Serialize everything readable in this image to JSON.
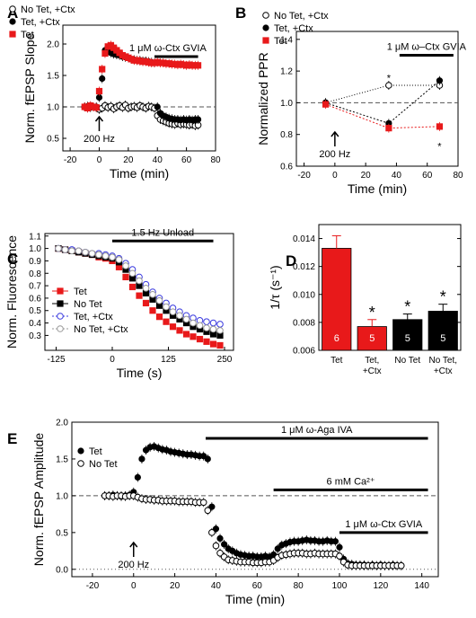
{
  "figure": {
    "panels": [
      "A",
      "B",
      "C",
      "D",
      "E"
    ]
  },
  "chart_data": [
    {
      "panel": "A",
      "type": "scatter",
      "xlabel": "Time (min)",
      "ylabel": "Norm. fEPSP Slope",
      "xlim": [
        -25,
        80
      ],
      "ylim": [
        0.3,
        2.3
      ],
      "xticks": [
        -20,
        0,
        20,
        40,
        60,
        80
      ],
      "yticks": [
        0.5,
        1.0,
        1.5,
        2.0
      ],
      "baseline": 1.0,
      "legend_position": "top-left",
      "annotations": [
        {
          "text": "1 μM ω-Ctx GVIA",
          "bar": [
            38,
            68
          ],
          "level": 1.8
        },
        {
          "text": "200 Hz",
          "x": 0,
          "arrow": true
        }
      ],
      "series": [
        {
          "name": "No Tet, +Ctx",
          "marker": "open-circle",
          "color": "#000000",
          "x": [
            -10,
            -8,
            -6,
            -4,
            -2,
            0,
            2,
            4,
            6,
            8,
            10,
            12,
            14,
            16,
            18,
            20,
            22,
            24,
            26,
            28,
            30,
            32,
            34,
            36,
            38,
            40,
            42,
            44,
            46,
            48,
            50,
            52,
            54,
            56,
            58,
            60,
            62,
            64,
            66,
            68
          ],
          "y": [
            1.0,
            0.99,
            1.01,
            1.0,
            0.99,
            0.96,
            0.98,
            1.02,
            0.99,
            1.01,
            0.97,
            1.0,
            1.02,
            0.99,
            1.03,
            0.98,
            1.0,
            1.01,
            0.99,
            1.02,
            1.0,
            0.98,
            1.01,
            1.0,
            0.98,
            0.86,
            0.8,
            0.78,
            0.76,
            0.74,
            0.73,
            0.72,
            0.74,
            0.72,
            0.73,
            0.72,
            0.71,
            0.72,
            0.7,
            0.71
          ]
        },
        {
          "name": "Tet, +Ctx",
          "marker": "filled-circle",
          "color": "#000000",
          "x": [
            -10,
            -8,
            -6,
            -4,
            -2,
            0,
            2,
            4,
            6,
            8,
            10,
            12,
            14,
            16,
            18,
            20,
            22,
            24,
            26,
            28,
            30,
            32,
            34,
            36,
            38,
            40,
            42,
            44,
            46,
            48,
            50,
            52,
            54,
            56,
            58,
            60,
            62,
            64,
            66,
            68
          ],
          "y": [
            1.0,
            1.01,
            0.99,
            1.0,
            1.0,
            1.15,
            1.45,
            1.9,
            1.88,
            1.86,
            1.84,
            1.83,
            1.82,
            1.8,
            1.79,
            1.78,
            1.76,
            1.75,
            1.74,
            1.74,
            1.73,
            1.73,
            1.72,
            1.71,
            1.7,
            1.0,
            0.9,
            0.86,
            0.84,
            0.82,
            0.81,
            0.8,
            0.8,
            0.79,
            0.8,
            0.79,
            0.8,
            0.79,
            0.8,
            0.8
          ]
        },
        {
          "name": "Tet",
          "marker": "filled-square",
          "color": "#e8191a",
          "x": [
            -10,
            -8,
            -6,
            -4,
            -2,
            0,
            2,
            4,
            6,
            8,
            10,
            12,
            14,
            16,
            18,
            20,
            22,
            24,
            26,
            28,
            30,
            32,
            34,
            36,
            38,
            40,
            42,
            44,
            46,
            48,
            50,
            52,
            54,
            56,
            58,
            60,
            62,
            64,
            66,
            68
          ],
          "y": [
            1.0,
            0.98,
            1.02,
            1.0,
            0.99,
            1.25,
            1.6,
            1.85,
            1.96,
            1.98,
            1.94,
            1.9,
            1.86,
            1.82,
            1.8,
            1.78,
            1.76,
            1.74,
            1.74,
            1.73,
            1.72,
            1.72,
            1.71,
            1.7,
            1.7,
            1.71,
            1.7,
            1.7,
            1.69,
            1.69,
            1.68,
            1.68,
            1.67,
            1.68,
            1.67,
            1.66,
            1.67,
            1.66,
            1.66,
            1.66
          ]
        }
      ]
    },
    {
      "panel": "B",
      "type": "scatter",
      "xlabel": "Time (min)",
      "ylabel": "Normalized PPR",
      "xlim": [
        -25,
        80
      ],
      "ylim": [
        0.6,
        1.45
      ],
      "xticks": [
        -20,
        0,
        20,
        40,
        60,
        80
      ],
      "yticks": [
        0.6,
        0.8,
        1.0,
        1.2,
        1.4
      ],
      "baseline": 1.0,
      "legend_position": "top-left",
      "annotations": [
        {
          "text": "1 μM ω–Ctx GVIA",
          "bar": [
            42,
            77
          ],
          "level": 1.3
        },
        {
          "text": "200 Hz",
          "x": 0,
          "arrow": true
        },
        {
          "text": "*",
          "x": 35,
          "y": 1.18
        },
        {
          "text": "*",
          "x": 68,
          "y": 0.75
        }
      ],
      "series": [
        {
          "name": "No Tet, +Ctx",
          "marker": "open-circle",
          "color": "#000000",
          "x": [
            -6,
            35,
            68
          ],
          "y": [
            1.0,
            1.11,
            1.11
          ]
        },
        {
          "name": "Tet, +Ctx",
          "marker": "filled-circle",
          "color": "#000000",
          "x": [
            -6,
            35,
            68
          ],
          "y": [
            1.0,
            0.87,
            1.14
          ]
        },
        {
          "name": "Tet",
          "marker": "filled-square",
          "color": "#e8191a",
          "x": [
            -6,
            35,
            68
          ],
          "y": [
            0.99,
            0.84,
            0.85
          ]
        }
      ]
    },
    {
      "panel": "C",
      "type": "scatter",
      "xlabel": "Time (s)",
      "ylabel": "Norm. Fluorescence",
      "xlim": [
        -150,
        270
      ],
      "ylim": [
        0.18,
        1.12
      ],
      "xticks": [
        -125,
        0,
        125,
        250
      ],
      "yticks": [
        0.3,
        0.4,
        0.5,
        0.6,
        0.7,
        0.8,
        0.9,
        1.0,
        1.1
      ],
      "annotations": [
        {
          "text": "1.5 Hz Unload",
          "bar": [
            0,
            225
          ],
          "level": 1.06
        }
      ],
      "legend_position": "bottom-left",
      "series": [
        {
          "name": "Tet",
          "marker": "filled-square",
          "color": "#e8191a",
          "x": [
            -120,
            -105,
            -90,
            -75,
            -60,
            -45,
            -30,
            -15,
            0,
            15,
            30,
            45,
            60,
            75,
            90,
            105,
            120,
            135,
            150,
            165,
            180,
            195,
            210,
            225,
            240
          ],
          "y": [
            1.0,
            0.99,
            0.98,
            0.97,
            0.96,
            0.95,
            0.93,
            0.92,
            0.9,
            0.85,
            0.77,
            0.69,
            0.62,
            0.56,
            0.5,
            0.45,
            0.41,
            0.37,
            0.34,
            0.31,
            0.29,
            0.27,
            0.25,
            0.23,
            0.22
          ]
        },
        {
          "name": "No Tet",
          "marker": "filled-square",
          "color": "#000000",
          "x": [
            -120,
            -105,
            -90,
            -75,
            -60,
            -45,
            -30,
            -15,
            0,
            15,
            30,
            45,
            60,
            75,
            90,
            105,
            120,
            135,
            150,
            165,
            180,
            195,
            210,
            225,
            240
          ],
          "y": [
            1.0,
            0.99,
            0.98,
            0.97,
            0.96,
            0.95,
            0.94,
            0.93,
            0.92,
            0.89,
            0.83,
            0.76,
            0.7,
            0.64,
            0.59,
            0.54,
            0.5,
            0.46,
            0.43,
            0.4,
            0.37,
            0.35,
            0.33,
            0.31,
            0.3
          ]
        },
        {
          "name": "Tet, +Ctx",
          "marker": "open-circle",
          "color": "#3a3adf",
          "x": [
            -120,
            -105,
            -90,
            -75,
            -60,
            -45,
            -30,
            -15,
            0,
            15,
            30,
            45,
            60,
            75,
            90,
            105,
            120,
            135,
            150,
            165,
            180,
            195,
            210,
            225,
            240
          ],
          "y": [
            1.0,
            0.99,
            0.99,
            0.98,
            0.97,
            0.96,
            0.96,
            0.95,
            0.94,
            0.92,
            0.88,
            0.83,
            0.77,
            0.71,
            0.65,
            0.6,
            0.56,
            0.52,
            0.49,
            0.46,
            0.44,
            0.42,
            0.41,
            0.4,
            0.39
          ]
        },
        {
          "name": "No Tet, +Ctx",
          "marker": "open-circle",
          "color": "#999999",
          "x": [
            -120,
            -105,
            -90,
            -75,
            -60,
            -45,
            -30,
            -15,
            0,
            15,
            30,
            45,
            60,
            75,
            90,
            105,
            120,
            135,
            150,
            165,
            180,
            195,
            210,
            225,
            240
          ],
          "y": [
            1.0,
            0.99,
            0.98,
            0.98,
            0.97,
            0.96,
            0.95,
            0.94,
            0.93,
            0.91,
            0.86,
            0.8,
            0.74,
            0.68,
            0.63,
            0.58,
            0.53,
            0.49,
            0.46,
            0.43,
            0.4,
            0.38,
            0.36,
            0.35,
            0.34
          ]
        }
      ]
    },
    {
      "panel": "D",
      "type": "bar",
      "ylabel": "1/τ (s⁻¹)",
      "ylim": [
        0.006,
        0.015
      ],
      "yticks": [
        0.006,
        0.008,
        0.01,
        0.012,
        0.014
      ],
      "categories": [
        "Tet",
        "Tet, +Ctx",
        "No Tet",
        "No Tet, +Ctx"
      ],
      "values": [
        0.0133,
        0.0077,
        0.0082,
        0.0088
      ],
      "errors": [
        0.0009,
        0.0005,
        0.0004,
        0.0005
      ],
      "n": [
        "6",
        "5",
        "5",
        "5"
      ],
      "significance": [
        "",
        "*",
        "*",
        "*"
      ],
      "colors": [
        "#e8191a",
        "#e8191a",
        "#000000",
        "#000000"
      ]
    },
    {
      "panel": "E",
      "type": "scatter",
      "xlabel": "Time (min)",
      "ylabel": "Norm. fEPSP Amplitude",
      "xlim": [
        -30,
        148
      ],
      "ylim": [
        -0.1,
        2.0
      ],
      "xticks": [
        -20,
        0,
        20,
        40,
        60,
        80,
        100,
        120,
        140
      ],
      "yticks": [
        0.0,
        0.5,
        1.0,
        1.5,
        2.0
      ],
      "baseline": 1.0,
      "legend_position": "top-left",
      "annotations": [
        {
          "text": "1 μM ω-Aga IVA",
          "bar": [
            35,
            143
          ],
          "level": 1.78
        },
        {
          "text": "6 mM Ca²⁺",
          "bar": [
            68,
            143
          ],
          "level": 1.08
        },
        {
          "text": "1 μM ω-Ctx GVIA",
          "bar": [
            100,
            143
          ],
          "level": 0.5
        },
        {
          "text": "200 Hz",
          "x": 0,
          "arrow": true
        }
      ],
      "series": [
        {
          "name": "Tet",
          "marker": "filled-circle",
          "color": "#000000",
          "x": [
            -14,
            -12,
            -10,
            -8,
            -6,
            -4,
            -2,
            0,
            2,
            4,
            6,
            8,
            10,
            12,
            14,
            16,
            18,
            20,
            22,
            24,
            26,
            28,
            30,
            32,
            34,
            36,
            38,
            40,
            42,
            44,
            46,
            48,
            50,
            52,
            54,
            56,
            58,
            60,
            62,
            64,
            66,
            68,
            70,
            72,
            74,
            76,
            78,
            80,
            82,
            84,
            86,
            88,
            90,
            92,
            94,
            96,
            98,
            100,
            102,
            104,
            106,
            108,
            110,
            112,
            114,
            116,
            118,
            120,
            122,
            124,
            126,
            128,
            130
          ],
          "y": [
            1.0,
            1.0,
            1.01,
            1.0,
            0.99,
            1.0,
            1.01,
            1.05,
            1.25,
            1.5,
            1.62,
            1.66,
            1.67,
            1.65,
            1.63,
            1.62,
            1.6,
            1.59,
            1.58,
            1.57,
            1.56,
            1.56,
            1.55,
            1.54,
            1.54,
            1.5,
            0.85,
            0.55,
            0.42,
            0.34,
            0.28,
            0.25,
            0.22,
            0.2,
            0.19,
            0.18,
            0.18,
            0.17,
            0.17,
            0.18,
            0.17,
            0.2,
            0.28,
            0.33,
            0.35,
            0.37,
            0.38,
            0.38,
            0.39,
            0.4,
            0.39,
            0.39,
            0.38,
            0.38,
            0.39,
            0.38,
            0.38,
            0.3,
            0.14,
            0.08,
            0.07,
            0.06,
            0.06,
            0.06,
            0.05,
            0.06,
            0.05,
            0.06,
            0.05,
            0.05,
            0.06,
            0.05,
            0.05
          ]
        },
        {
          "name": "No Tet",
          "marker": "open-circle",
          "color": "#000000",
          "x": [
            -14,
            -12,
            -10,
            -8,
            -6,
            -4,
            -2,
            0,
            2,
            4,
            6,
            8,
            10,
            12,
            14,
            16,
            18,
            20,
            22,
            24,
            26,
            28,
            30,
            32,
            34,
            36,
            38,
            40,
            42,
            44,
            46,
            48,
            50,
            52,
            54,
            56,
            58,
            60,
            62,
            64,
            66,
            68,
            70,
            72,
            74,
            76,
            78,
            80,
            82,
            84,
            86,
            88,
            90,
            92,
            94,
            96,
            98,
            100,
            102,
            104,
            106,
            108,
            110,
            112,
            114,
            116,
            118,
            120,
            122,
            124,
            126,
            128,
            130
          ],
          "y": [
            1.0,
            1.0,
            0.99,
            1.0,
            1.0,
            0.99,
            1.0,
            1.0,
            0.98,
            0.96,
            0.95,
            0.95,
            0.94,
            0.94,
            0.93,
            0.93,
            0.93,
            0.93,
            0.92,
            0.92,
            0.92,
            0.92,
            0.91,
            0.91,
            0.91,
            0.8,
            0.5,
            0.32,
            0.22,
            0.17,
            0.13,
            0.12,
            0.11,
            0.1,
            0.1,
            0.1,
            0.09,
            0.09,
            0.09,
            0.1,
            0.1,
            0.12,
            0.16,
            0.19,
            0.2,
            0.21,
            0.22,
            0.22,
            0.22,
            0.21,
            0.21,
            0.22,
            0.21,
            0.21,
            0.21,
            0.21,
            0.21,
            0.18,
            0.1,
            0.06,
            0.05,
            0.05,
            0.05,
            0.05,
            0.05,
            0.05,
            0.05,
            0.05,
            0.05,
            0.05,
            0.05,
            0.05,
            0.05
          ]
        }
      ]
    }
  ]
}
